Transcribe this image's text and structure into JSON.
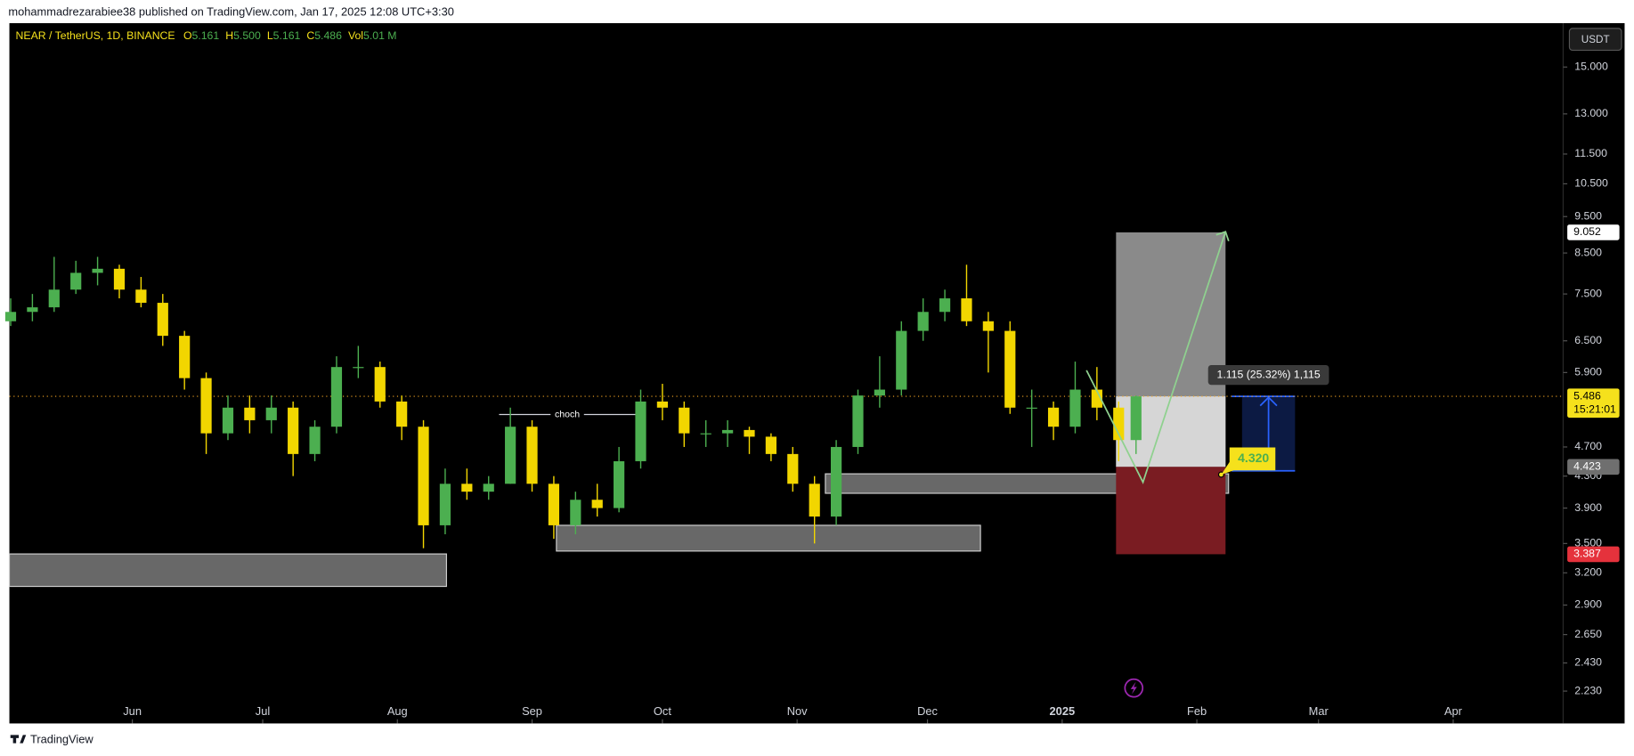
{
  "header": "mohammadrezarabiee38 published on TradingView.com, Jan 17, 2025 12:08 UTC+3:30",
  "footer": "TradingView",
  "chart_data": {
    "type": "candlestick",
    "symbol": "NEAR / TetherUS, 1D, BINANCE",
    "ohlc_legend": [
      {
        "label": "O",
        "value": 5.161
      },
      {
        "label": "H",
        "value": 5.5,
        "value_label": "5.500"
      },
      {
        "label": "L",
        "value": 5.161
      },
      {
        "label": "C",
        "value": 5.486
      },
      {
        "label": "Vol",
        "value": 5010000,
        "value_label": "5.01 M"
      }
    ],
    "currency": "USDT",
    "x": [
      -28,
      -23,
      -18,
      -13,
      -8,
      -3,
      2,
      7,
      12,
      17,
      22,
      27,
      32,
      37,
      42,
      47,
      52,
      57,
      62,
      67,
      72,
      77,
      82,
      87,
      92,
      97,
      102,
      107,
      112,
      117,
      122,
      127,
      132,
      137,
      142,
      147,
      152,
      157,
      162,
      167,
      172,
      177,
      182,
      187,
      192,
      197,
      202,
      207,
      212,
      217,
      222,
      227,
      231
    ],
    "open": [
      6.9,
      7.1,
      7.2,
      7.6,
      8.0,
      8.1,
      7.6,
      7.3,
      6.6,
      5.8,
      4.9,
      5.3,
      5.1,
      5.3,
      4.6,
      5.0,
      6.0,
      6.0,
      5.4,
      5.0,
      3.7,
      4.2,
      4.1,
      4.2,
      5.0,
      4.2,
      3.7,
      4.0,
      3.9,
      4.5,
      5.4,
      5.3,
      4.9,
      4.9,
      4.95,
      4.85,
      4.6,
      4.2,
      3.8,
      4.7,
      5.5,
      5.6,
      6.7,
      7.1,
      7.4,
      6.9,
      6.7,
      5.3,
      5.3,
      5.0,
      5.6,
      5.3,
      4.8
    ],
    "high": [
      7.4,
      7.5,
      8.4,
      8.3,
      8.4,
      8.2,
      7.9,
      7.5,
      6.7,
      5.9,
      5.5,
      5.5,
      5.5,
      5.4,
      5.1,
      6.2,
      6.4,
      6.1,
      5.5,
      5.1,
      4.4,
      4.4,
      4.3,
      5.3,
      5.1,
      4.3,
      4.1,
      4.2,
      4.7,
      5.6,
      5.7,
      5.4,
      5.1,
      5.1,
      5.0,
      4.9,
      4.7,
      4.3,
      4.8,
      5.6,
      6.2,
      6.9,
      7.4,
      7.6,
      8.2,
      7.1,
      6.9,
      5.6,
      5.4,
      6.1,
      6.0,
      5.4,
      5.5
    ],
    "low": [
      6.8,
      6.9,
      7.1,
      7.5,
      7.7,
      7.4,
      7.2,
      6.4,
      5.6,
      4.6,
      4.8,
      4.9,
      4.9,
      4.3,
      4.5,
      4.9,
      5.8,
      5.3,
      4.8,
      3.45,
      3.6,
      4.0,
      4.0,
      4.2,
      4.1,
      3.55,
      3.6,
      3.8,
      3.85,
      4.4,
      5.1,
      4.7,
      4.7,
      4.7,
      4.6,
      4.5,
      4.1,
      3.5,
      3.7,
      4.6,
      5.3,
      5.5,
      6.5,
      6.9,
      6.8,
      5.9,
      5.2,
      4.7,
      4.8,
      4.9,
      5.1,
      4.5,
      4.6
    ],
    "close": [
      7.1,
      7.2,
      7.6,
      8.0,
      8.1,
      7.6,
      7.3,
      6.6,
      5.8,
      4.9,
      5.3,
      5.1,
      5.3,
      4.6,
      5.0,
      6.0,
      6.0,
      5.4,
      5.0,
      3.7,
      4.2,
      4.1,
      4.2,
      5.0,
      4.2,
      3.7,
      4.0,
      3.9,
      4.5,
      5.4,
      5.3,
      4.9,
      4.9,
      4.95,
      4.85,
      4.6,
      4.2,
      3.8,
      4.7,
      5.5,
      5.6,
      6.7,
      7.1,
      7.4,
      6.9,
      6.7,
      5.3,
      5.3,
      5.0,
      5.6,
      5.3,
      4.8,
      5.486
    ],
    "up_color": "#4caf50",
    "down_color": "#f2d600",
    "xlim": [
      -28.3,
      329.3
    ],
    "xticks": [
      {
        "value": 0,
        "label": "Jun"
      },
      {
        "value": 30,
        "label": "Jul"
      },
      {
        "value": 61,
        "label": "Aug"
      },
      {
        "value": 92,
        "label": "Sep"
      },
      {
        "value": 122,
        "label": "Oct"
      },
      {
        "value": 153,
        "label": "Nov"
      },
      {
        "value": 183,
        "label": "Dec"
      },
      {
        "value": 214,
        "label": "2025"
      },
      {
        "value": 245,
        "label": "Feb"
      },
      {
        "value": 273,
        "label": "Mar"
      },
      {
        "value": 304,
        "label": "Apr"
      }
    ],
    "ylim": [
      2.02,
      17.15
    ],
    "log_scale": true,
    "yticks": [
      {
        "value": 15,
        "label": "15.000"
      },
      {
        "value": 13,
        "label": "13.000"
      },
      {
        "value": 11.5,
        "label": "11.500"
      },
      {
        "value": 10.5,
        "label": "10.500"
      },
      {
        "value": 9.5,
        "label": "9.500"
      },
      {
        "value": 8.5,
        "label": "8.500"
      },
      {
        "value": 7.5,
        "label": "7.500"
      },
      {
        "value": 6.5,
        "label": "6.500"
      },
      {
        "value": 5.9,
        "label": "5.900"
      },
      {
        "value": 4.7,
        "label": "4.700"
      },
      {
        "value": 4.3,
        "label": "4.300"
      },
      {
        "value": 3.9,
        "label": "3.900"
      },
      {
        "value": 3.5,
        "label": "3.500"
      },
      {
        "value": 3.2,
        "label": "3.200"
      },
      {
        "value": 2.9,
        "label": "2.900"
      },
      {
        "value": 2.65,
        "label": "2.650"
      },
      {
        "value": 2.43,
        "label": "2.430"
      },
      {
        "value": 2.23,
        "label": "2.230"
      }
    ],
    "zones": [
      {
        "x": [
          -28.3,
          72.3
        ],
        "y": [
          3.07,
          3.39
        ]
      },
      {
        "x": [
          97.6,
          195.2
        ],
        "y": [
          3.42,
          3.7
        ]
      },
      {
        "x": [
          159.5,
          252.3
        ],
        "y": [
          4.08,
          4.33
        ]
      }
    ],
    "zone_color": "#7a7a7a",
    "position": {
      "x": [
        226.4,
        251.6
      ],
      "target": 9.052,
      "entry": 4.423,
      "stop": 3.387
    },
    "axis_labels": [
      {
        "value": 9.052,
        "bg": "#ffffff",
        "fg": "#000000"
      },
      {
        "value": 5.486,
        "bg": "#f5e11c",
        "fg": "#000000",
        "countdown": "15:21:01"
      },
      {
        "value": 4.423,
        "bg": "#6f6f6f",
        "fg": "#ffffff"
      },
      {
        "value": 3.387,
        "bg": "#e5323c",
        "fg": "#ffffff"
      }
    ],
    "projection": {
      "x": [
        219.6,
        232.6,
        251.6
      ],
      "y": [
        5.94,
        4.22,
        9.07
      ],
      "color": "#8fd18f"
    },
    "choch": {
      "text": "choch",
      "x": [
        84.4,
        115.8
      ],
      "y": 5.19
    },
    "callout": {
      "value": 4.32,
      "label": "4.320",
      "x": 250.6
    },
    "measure": {
      "x": [
        255.4,
        267.6
      ],
      "y": [
        4.37,
        5.486
      ],
      "text": "1.115 (25.32%) 1,115"
    }
  }
}
